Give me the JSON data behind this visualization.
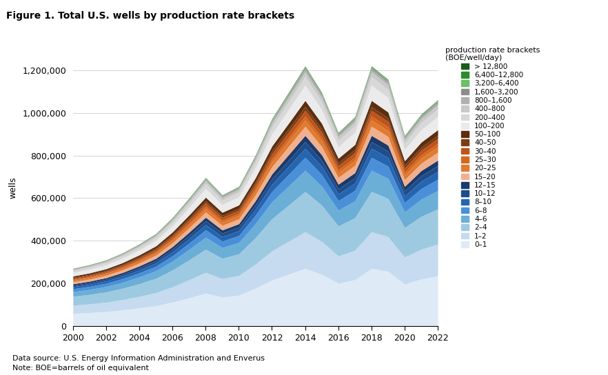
{
  "title": "Figure 1. Total U.S. wells by production rate brackets",
  "ylabel": "wells",
  "note1": "Data source: U.S. Energy Information Administration and Enverus",
  "note2": "Note: BOE=barrels of oil equivalent",
  "legend_title": "production rate brackets\n(BOE/well/day)",
  "years": [
    2000,
    2001,
    2002,
    2003,
    2004,
    2005,
    2006,
    2007,
    2008,
    2009,
    2010,
    2011,
    2012,
    2013,
    2014,
    2015,
    2016,
    2017,
    2018,
    2019,
    2020,
    2021,
    2022
  ],
  "series": {
    "> 12,800": [
      400,
      400,
      400,
      450,
      500,
      550,
      650,
      750,
      800,
      700,
      750,
      900,
      1100,
      1300,
      1500,
      1300,
      1100,
      1200,
      1500,
      1400,
      1100,
      1200,
      1300
    ],
    "6,400–12,800": [
      600,
      650,
      650,
      700,
      750,
      850,
      1000,
      1150,
      1300,
      1100,
      1200,
      1500,
      1800,
      2100,
      2400,
      2100,
      1800,
      1900,
      2400,
      2200,
      1700,
      1900,
      2000
    ],
    "3,200–6,400": [
      900,
      950,
      1000,
      1100,
      1200,
      1400,
      1600,
      1900,
      2200,
      1900,
      2000,
      2500,
      3000,
      3500,
      4000,
      3500,
      2900,
      3200,
      4000,
      3700,
      2900,
      3200,
      3400
    ],
    "1,600–3,200": [
      1500,
      1600,
      1700,
      1900,
      2100,
      2400,
      2800,
      3300,
      3800,
      3400,
      3600,
      4400,
      5300,
      6000,
      6700,
      6000,
      5000,
      5400,
      6700,
      6400,
      4900,
      5500,
      5800
    ],
    "800–1,600": [
      2800,
      3000,
      3200,
      3600,
      4000,
      4500,
      5300,
      6200,
      7200,
      6400,
      6800,
      8300,
      10000,
      11300,
      12600,
      11300,
      9400,
      10100,
      12600,
      11900,
      9200,
      10200,
      10900
    ],
    "400–800": [
      5000,
      5300,
      5700,
      6300,
      7100,
      8000,
      9400,
      11000,
      12800,
      11300,
      12000,
      14700,
      17800,
      20000,
      22300,
      20000,
      16600,
      17900,
      22300,
      21100,
      16300,
      18100,
      19300
    ],
    "200–400": [
      9000,
      9600,
      10300,
      11400,
      12800,
      14400,
      16900,
      19900,
      23100,
      20400,
      21700,
      26500,
      32200,
      36200,
      40300,
      36200,
      30000,
      32400,
      40300,
      38200,
      29500,
      32800,
      35000
    ],
    "100–200": [
      16000,
      17000,
      18300,
      20300,
      22800,
      25600,
      30000,
      35400,
      41000,
      36300,
      38500,
      47100,
      57200,
      64400,
      71600,
      64400,
      53400,
      57700,
      71600,
      67900,
      52400,
      58300,
      62200
    ],
    "50–100": [
      6500,
      6900,
      7400,
      8200,
      9200,
      10300,
      12100,
      14300,
      16600,
      14700,
      15600,
      19100,
      23200,
      26100,
      29000,
      26100,
      21600,
      23400,
      29000,
      27500,
      21200,
      23600,
      25200
    ],
    "40–50": [
      4000,
      4250,
      4600,
      5100,
      5700,
      6400,
      7500,
      8900,
      10300,
      9100,
      9700,
      11800,
      14400,
      16200,
      18000,
      16200,
      13400,
      14500,
      18000,
      17100,
      13200,
      14700,
      15700
    ],
    "30–40": [
      6000,
      6400,
      6900,
      7600,
      8500,
      9600,
      11300,
      13300,
      15400,
      13600,
      14500,
      17700,
      21500,
      24200,
      26900,
      24200,
      20000,
      21700,
      26900,
      25500,
      19700,
      21900,
      23400
    ],
    "25–30": [
      4000,
      4250,
      4600,
      5100,
      5700,
      6400,
      7500,
      8900,
      10300,
      9100,
      9700,
      11800,
      14400,
      16200,
      18000,
      16200,
      13400,
      14500,
      18000,
      17100,
      13200,
      14700,
      15700
    ],
    "20–25": [
      6500,
      6900,
      7400,
      8200,
      9200,
      10400,
      12200,
      14400,
      16700,
      14700,
      15700,
      19200,
      23300,
      26200,
      29200,
      26200,
      21700,
      23500,
      29200,
      27700,
      21400,
      23800,
      25400
    ],
    "15–20": [
      9500,
      10100,
      10900,
      12000,
      13500,
      15200,
      17800,
      21000,
      24400,
      21500,
      22900,
      28000,
      34000,
      38300,
      42600,
      38300,
      31700,
      34300,
      42600,
      40400,
      31200,
      34700,
      37100
    ],
    "12–15": [
      6500,
      6900,
      7400,
      8200,
      9200,
      10400,
      12200,
      14400,
      16700,
      14700,
      15700,
      19200,
      23300,
      26200,
      29200,
      26200,
      21700,
      23500,
      29200,
      27700,
      21400,
      23800,
      25400
    ],
    "10–12": [
      7000,
      7400,
      8000,
      8900,
      9900,
      11200,
      13100,
      15500,
      18000,
      15900,
      16900,
      20700,
      25100,
      28300,
      31500,
      28300,
      23400,
      25300,
      31500,
      29900,
      23100,
      25700,
      27400
    ],
    "8–10": [
      9500,
      10100,
      10900,
      12000,
      13500,
      15200,
      17800,
      21000,
      24400,
      21500,
      22900,
      28000,
      34000,
      38300,
      42600,
      38300,
      31700,
      34300,
      42600,
      40400,
      31200,
      34700,
      37100
    ],
    "6–8": [
      13500,
      14300,
      15400,
      17100,
      19200,
      21600,
      25300,
      29900,
      34700,
      30600,
      32600,
      39900,
      48400,
      54500,
      60700,
      54500,
      45100,
      48800,
      60700,
      57600,
      44500,
      49500,
      52800
    ],
    "4–6": [
      22000,
      23400,
      25200,
      27900,
      31300,
      35200,
      41300,
      48700,
      56500,
      49900,
      53100,
      65000,
      78900,
      88900,
      98900,
      88900,
      73600,
      79600,
      98900,
      93800,
      72400,
      80600,
      86000
    ],
    "2–4": [
      42000,
      44600,
      48100,
      53300,
      59800,
      67200,
      78900,
      93000,
      107900,
      95300,
      101500,
      124200,
      150900,
      169900,
      189000,
      169900,
      140700,
      152100,
      189000,
      179300,
      138500,
      154100,
      164500
    ],
    "1–2": [
      38000,
      40400,
      43600,
      48300,
      54100,
      60900,
      71500,
      84300,
      97800,
      86400,
      92000,
      112600,
      136800,
      154000,
      171400,
      154000,
      127500,
      137900,
      171400,
      162600,
      125600,
      139800,
      149200
    ],
    "0–1": [
      60000,
      63800,
      68800,
      76300,
      85500,
      96200,
      113000,
      133200,
      154500,
      136500,
      145400,
      177900,
      216100,
      243300,
      270700,
      243300,
      201400,
      217800,
      270700,
      256800,
      198300,
      220700,
      235600
    ]
  },
  "colors": {
    "> 12,800": "#1a5c1a",
    "6,400–12,800": "#2e8b2e",
    "3,200–6,400": "#6abf69",
    "1,600–3,200": "#8c8c8c",
    "800–1,600": "#b0b0b0",
    "400–800": "#c8c8c8",
    "200–400": "#d8d8d8",
    "100–200": "#ebebeb",
    "50–100": "#5c2d0e",
    "40–50": "#7b3d14",
    "30–40": "#c0531a",
    "25–30": "#d4681f",
    "20–25": "#e07b30",
    "15–20": "#f0b090",
    "12–15": "#1a3a6b",
    "10–12": "#1e4d8c",
    "8–10": "#2565b0",
    "6–8": "#4a90d9",
    "4–6": "#6baed6",
    "2–4": "#9ecae1",
    "1–2": "#c6dbef",
    "0–1": "#deebf7"
  },
  "ylim": [
    0,
    1300000
  ],
  "yticks": [
    0,
    200000,
    400000,
    600000,
    800000,
    1000000,
    1200000
  ],
  "ytick_labels": [
    "0",
    "200,000",
    "400,000",
    "600,000",
    "800,000",
    "1,000,000",
    "1,200,000"
  ],
  "xticks": [
    2000,
    2002,
    2004,
    2006,
    2008,
    2010,
    2012,
    2014,
    2016,
    2018,
    2020,
    2022
  ]
}
